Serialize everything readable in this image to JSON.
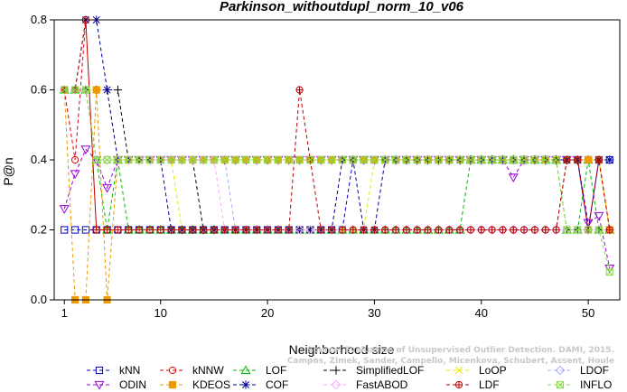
{
  "chart_data": {
    "type": "line",
    "title": "Parkinson_withoutdupl_norm_10_v06",
    "xlabel": "Neighborhood size",
    "ylabel": "P@n",
    "xlim": [
      1,
      52
    ],
    "ylim": [
      0,
      0.8
    ],
    "xticks": [
      1,
      10,
      20,
      30,
      40,
      50
    ],
    "yticks": [
      0.0,
      0.2,
      0.4,
      0.6,
      0.8
    ],
    "x": [
      1,
      2,
      3,
      4,
      5,
      6,
      7,
      8,
      9,
      10,
      11,
      12,
      13,
      14,
      15,
      16,
      17,
      18,
      19,
      20,
      21,
      22,
      23,
      24,
      25,
      26,
      27,
      28,
      29,
      30,
      31,
      32,
      33,
      34,
      35,
      36,
      37,
      38,
      39,
      40,
      41,
      42,
      43,
      44,
      45,
      46,
      47,
      48,
      49,
      50,
      51,
      52
    ],
    "series": [
      {
        "name": "kNN",
        "color": "#0000cc",
        "marker": "square",
        "values": [
          0.2,
          0.2,
          0.2,
          0.2,
          0.2,
          0.2,
          0.2,
          0.2,
          0.2,
          0.2,
          0.2,
          0.2,
          0.2,
          0.2,
          0.2,
          0.2,
          0.2,
          0.2,
          0.2,
          0.2,
          0.2,
          0.2,
          0.2,
          0.2,
          0.2,
          0.2,
          0.2,
          0.4,
          0.4,
          0.4,
          0.4,
          0.4,
          0.4,
          0.4,
          0.4,
          0.4,
          0.4,
          0.4,
          0.4,
          0.4,
          0.4,
          0.4,
          0.4,
          0.4,
          0.4,
          0.4,
          0.4,
          0.4,
          0.4,
          0.4,
          0.4,
          0.4
        ]
      },
      {
        "name": "kNNW",
        "color": "#e00000",
        "marker": "circle",
        "values": [
          0.6,
          0.4,
          0.8,
          0.2,
          0.2,
          0.2,
          0.2,
          0.2,
          0.2,
          0.2,
          0.2,
          0.2,
          0.2,
          0.2,
          0.2,
          0.2,
          0.2,
          0.2,
          0.2,
          0.2,
          0.2,
          0.2,
          0.2,
          0.2,
          0.2,
          0.2,
          0.2,
          0.2,
          0.2,
          0.2,
          0.2,
          0.2,
          0.2,
          0.2,
          0.2,
          0.2,
          0.2,
          0.2,
          0.2,
          0.2,
          0.2,
          0.2,
          0.2,
          0.2,
          0.2,
          0.2,
          0.2,
          0.4,
          0.4,
          0.2,
          0.4,
          0.2
        ]
      },
      {
        "name": "LOF",
        "color": "#00bb00",
        "marker": "triangle",
        "values": [
          0.6,
          0.6,
          0.6,
          0.4,
          0.2,
          0.4,
          0.2,
          0.2,
          0.2,
          0.2,
          0.2,
          0.2,
          0.2,
          0.2,
          0.2,
          0.2,
          0.2,
          0.2,
          0.2,
          0.2,
          0.2,
          0.2,
          0.2,
          0.2,
          0.2,
          0.2,
          0.2,
          0.2,
          0.2,
          0.2,
          0.2,
          0.2,
          0.2,
          0.2,
          0.2,
          0.2,
          0.2,
          0.2,
          0.4,
          0.4,
          0.4,
          0.4,
          0.4,
          0.4,
          0.4,
          0.4,
          0.4,
          0.2,
          0.2,
          0.4,
          0.2,
          0.2
        ]
      },
      {
        "name": "SimplifiedLOF",
        "color": "#000000",
        "marker": "plus",
        "values": [
          0.6,
          0.6,
          0.6,
          0.6,
          0.6,
          0.6,
          0.4,
          0.4,
          0.4,
          0.4,
          0.4,
          0.4,
          0.4,
          0.2,
          0.2,
          0.2,
          0.2,
          0.2,
          0.2,
          0.2,
          0.2,
          0.2,
          0.2,
          0.2,
          0.2,
          0.2,
          0.2,
          0.2,
          0.2,
          0.2,
          0.2,
          0.2,
          0.2,
          0.2,
          0.2,
          0.2,
          0.2,
          0.2,
          0.2,
          0.2,
          0.2,
          0.2,
          0.2,
          0.2,
          0.2,
          0.2,
          0.2,
          0.2,
          0.2,
          0.2,
          0.2,
          0.2
        ]
      },
      {
        "name": "LoOP",
        "color": "#e8e800",
        "marker": "cross",
        "values": [
          0.6,
          0.6,
          0.6,
          0.6,
          0.6,
          0.4,
          0.4,
          0.4,
          0.4,
          0.4,
          0.4,
          0.2,
          0.2,
          0.2,
          0.2,
          0.2,
          0.2,
          0.2,
          0.2,
          0.2,
          0.2,
          0.2,
          0.2,
          0.2,
          0.2,
          0.2,
          0.2,
          0.2,
          0.2,
          0.4,
          0.4,
          0.4,
          0.4,
          0.4,
          0.4,
          0.4,
          0.4,
          0.4,
          0.4,
          0.4,
          0.4,
          0.4,
          0.4,
          0.4,
          0.4,
          0.4,
          0.4,
          0.4,
          0.4,
          0.4,
          0.4,
          0.2
        ]
      },
      {
        "name": "LDOF",
        "color": "#aaaaff",
        "marker": "diamond",
        "values": [
          0.6,
          0.6,
          0.6,
          0.4,
          0.4,
          0.4,
          0.4,
          0.4,
          0.4,
          0.4,
          0.4,
          0.4,
          0.4,
          0.4,
          0.4,
          0.4,
          0.2,
          0.2,
          0.2,
          0.2,
          0.2,
          0.2,
          0.2,
          0.2,
          0.2,
          0.2,
          0.2,
          0.2,
          0.2,
          0.2,
          0.2,
          0.2,
          0.2,
          0.2,
          0.2,
          0.2,
          0.2,
          0.2,
          0.2,
          0.2,
          0.2,
          0.2,
          0.2,
          0.2,
          0.2,
          0.2,
          0.2,
          0.2,
          0.2,
          0.2,
          0.2,
          0.2
        ]
      },
      {
        "name": "ODIN",
        "color": "#9900dd",
        "marker": "tridown",
        "values": [
          0.26,
          0.36,
          0.43,
          0.4,
          0.32,
          0.4,
          0.4,
          0.4,
          0.4,
          0.4,
          0.4,
          0.4,
          0.4,
          0.4,
          0.4,
          0.4,
          0.4,
          0.4,
          0.4,
          0.4,
          0.4,
          0.4,
          0.4,
          0.4,
          0.4,
          0.4,
          0.4,
          0.4,
          0.4,
          0.4,
          0.4,
          0.4,
          0.4,
          0.4,
          0.4,
          0.4,
          0.4,
          0.4,
          0.4,
          0.4,
          0.4,
          0.4,
          0.35,
          0.4,
          0.4,
          0.4,
          0.4,
          0.4,
          0.4,
          0.22,
          0.24,
          0.09
        ]
      },
      {
        "name": "KDEOS",
        "color": "#ee9900",
        "marker": "filledsquare",
        "values": [
          0.6,
          0.0,
          0.0,
          0.6,
          0.0,
          0.4,
          0.4,
          0.4,
          0.4,
          0.4,
          0.4,
          0.4,
          0.4,
          0.4,
          0.4,
          0.4,
          0.4,
          0.4,
          0.4,
          0.4,
          0.4,
          0.4,
          0.4,
          0.4,
          0.4,
          0.4,
          0.4,
          0.4,
          0.4,
          0.4,
          0.4,
          0.4,
          0.4,
          0.4,
          0.4,
          0.4,
          0.4,
          0.4,
          0.4,
          0.4,
          0.4,
          0.4,
          0.4,
          0.4,
          0.4,
          0.4,
          0.4,
          0.4,
          0.4,
          0.4,
          0.4,
          0.2
        ]
      },
      {
        "name": "COF",
        "color": "#000099",
        "marker": "star",
        "values": [
          0.6,
          0.6,
          0.8,
          0.8,
          0.6,
          0.4,
          0.4,
          0.4,
          0.4,
          0.4,
          0.2,
          0.2,
          0.2,
          0.2,
          0.2,
          0.2,
          0.2,
          0.2,
          0.2,
          0.2,
          0.2,
          0.2,
          0.2,
          0.2,
          0.2,
          0.2,
          0.4,
          0.4,
          0.2,
          0.2,
          0.4,
          0.4,
          0.4,
          0.4,
          0.4,
          0.4,
          0.4,
          0.4,
          0.4,
          0.4,
          0.4,
          0.4,
          0.4,
          0.4,
          0.4,
          0.4,
          0.4,
          0.4,
          0.4,
          0.2,
          0.4,
          0.4
        ]
      },
      {
        "name": "FastABOD",
        "color": "#ffaaff",
        "marker": "diamond",
        "values": [
          0.6,
          0.6,
          0.6,
          0.4,
          0.4,
          0.4,
          0.4,
          0.4,
          0.4,
          0.4,
          0.4,
          0.4,
          0.4,
          0.4,
          0.4,
          0.2,
          0.2,
          0.2,
          0.2,
          0.2,
          0.2,
          0.2,
          0.2,
          0.2,
          0.2,
          0.2,
          0.2,
          0.2,
          0.2,
          0.2,
          0.2,
          0.2,
          0.2,
          0.2,
          0.2,
          0.2,
          0.2,
          0.2,
          0.2,
          0.2,
          0.2,
          0.2,
          0.2,
          0.2,
          0.2,
          0.2,
          0.2,
          0.2,
          0.2,
          0.2,
          0.2,
          0.2
        ]
      },
      {
        "name": "LDF",
        "color": "#bb0000",
        "marker": "circleplus",
        "values": [
          0.6,
          0.6,
          0.8,
          0.2,
          0.2,
          0.2,
          0.2,
          0.2,
          0.2,
          0.2,
          0.2,
          0.2,
          0.2,
          0.2,
          0.2,
          0.2,
          0.2,
          0.2,
          0.2,
          0.2,
          0.2,
          0.2,
          0.6,
          0.4,
          0.2,
          0.2,
          0.2,
          0.2,
          0.2,
          0.2,
          0.2,
          0.2,
          0.2,
          0.2,
          0.2,
          0.2,
          0.2,
          0.2,
          0.2,
          0.2,
          0.2,
          0.2,
          0.2,
          0.2,
          0.2,
          0.2,
          0.2,
          0.4,
          0.4,
          0.2,
          0.4,
          0.2
        ]
      },
      {
        "name": "INFLO",
        "color": "#88dd44",
        "marker": "boxcross",
        "values": [
          0.6,
          0.6,
          0.6,
          0.4,
          0.4,
          0.4,
          0.4,
          0.4,
          0.4,
          0.4,
          0.4,
          0.4,
          0.4,
          0.4,
          0.4,
          0.4,
          0.4,
          0.4,
          0.4,
          0.4,
          0.4,
          0.4,
          0.4,
          0.4,
          0.4,
          0.4,
          0.4,
          0.4,
          0.4,
          0.4,
          0.4,
          0.4,
          0.4,
          0.4,
          0.4,
          0.4,
          0.4,
          0.4,
          0.4,
          0.4,
          0.4,
          0.4,
          0.4,
          0.4,
          0.4,
          0.4,
          0.4,
          0.2,
          0.2,
          0.2,
          0.2,
          0.08
        ]
      }
    ],
    "legend_placement": "bottom",
    "grid": false
  },
  "watermark": {
    "line1": "Source: Evaluation of Unsupervised Outlier Detection. DAMI, 2015.",
    "line2": "Campos, Zimek, Sander, Campello, Micenkova, Schubert, Assent, Houle"
  }
}
